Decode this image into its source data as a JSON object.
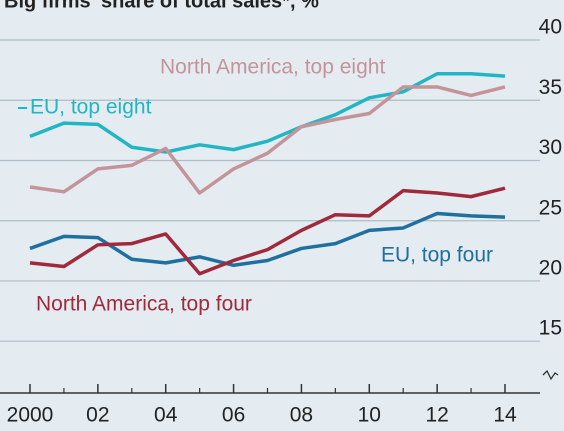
{
  "chart_data": {
    "type": "line",
    "title": "Big firms' share of total sales*, %",
    "x": [
      2000,
      2001,
      2002,
      2003,
      2004,
      2005,
      2006,
      2007,
      2008,
      2009,
      2010,
      2011,
      2012,
      2013,
      2014
    ],
    "xlim": [
      2000,
      2014
    ],
    "xticks": [
      {
        "value": 2000,
        "label": "2000"
      },
      {
        "value": 2002,
        "label": "02"
      },
      {
        "value": 2004,
        "label": "04"
      },
      {
        "value": 2006,
        "label": "06"
      },
      {
        "value": 2008,
        "label": "08"
      },
      {
        "value": 2010,
        "label": "10"
      },
      {
        "value": 2012,
        "label": "12"
      },
      {
        "value": 2014,
        "label": "14"
      }
    ],
    "ylim": [
      10.7,
      40
    ],
    "yticks": [
      15,
      20,
      25,
      30,
      35,
      40
    ],
    "grid": true,
    "series": [
      {
        "name": "EU, top eight",
        "color": "#22b5c3",
        "values": [
          32.0,
          33.1,
          33.0,
          31.1,
          30.7,
          31.3,
          30.9,
          31.6,
          32.8,
          33.8,
          35.2,
          35.7,
          37.2,
          37.2,
          37.0
        ]
      },
      {
        "name": "North America, top eight",
        "color": "#c4949b",
        "values": [
          27.8,
          27.4,
          29.3,
          29.6,
          31.0,
          27.3,
          29.3,
          30.6,
          32.8,
          33.4,
          33.9,
          36.1,
          36.1,
          35.4,
          36.1
        ]
      },
      {
        "name": "EU, top four",
        "color": "#1f6f9f",
        "values": [
          22.7,
          23.7,
          23.6,
          21.8,
          21.5,
          22.0,
          21.3,
          21.7,
          22.7,
          23.1,
          24.2,
          24.4,
          25.6,
          25.4,
          25.3
        ]
      },
      {
        "name": "North America, top four",
        "color": "#9e2a3c",
        "values": [
          21.5,
          21.2,
          23.0,
          23.1,
          23.9,
          20.6,
          21.7,
          22.6,
          24.2,
          25.5,
          25.4,
          27.5,
          27.3,
          27.0,
          27.7
        ]
      }
    ]
  }
}
